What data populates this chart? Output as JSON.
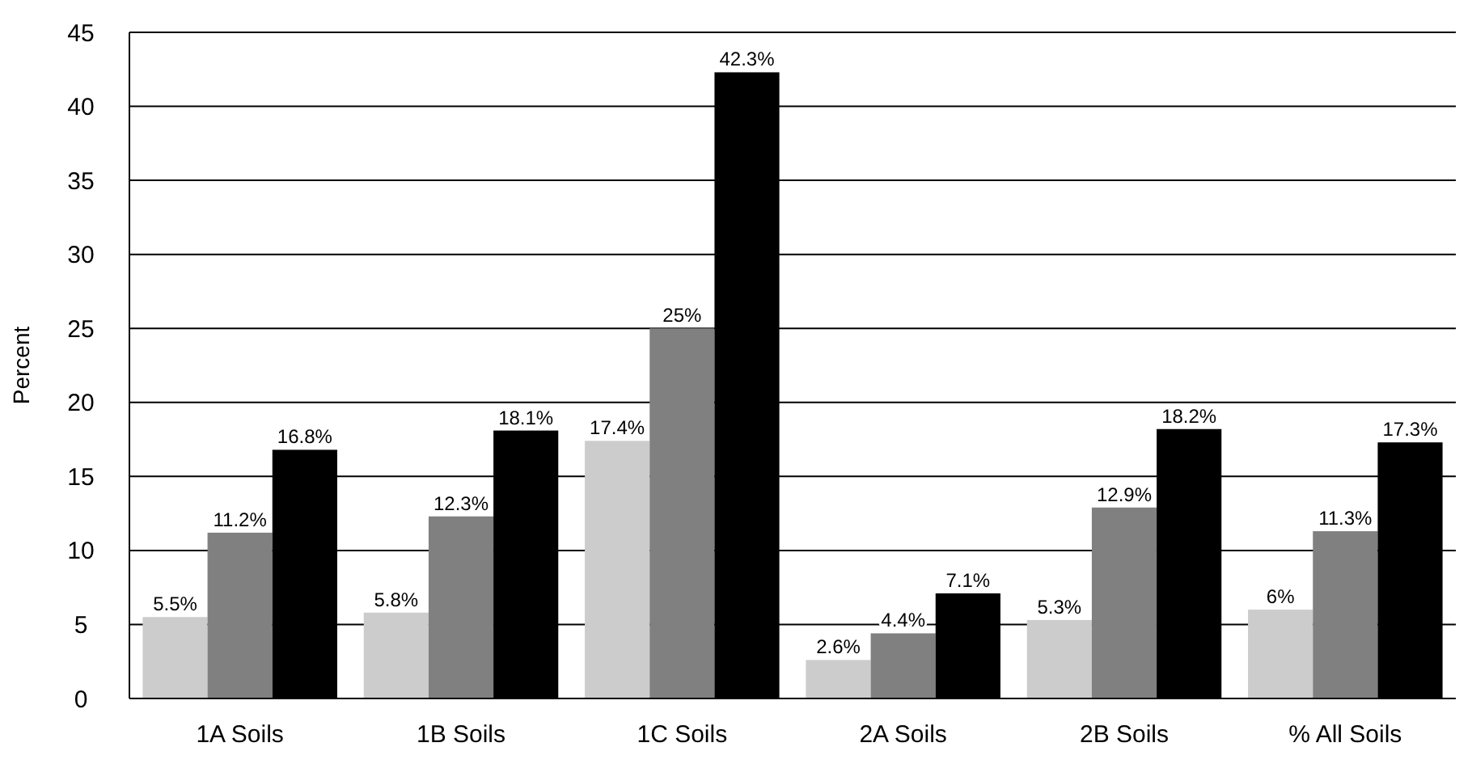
{
  "chart_data": {
    "type": "bar",
    "ylabel": "Percent",
    "categories": [
      "1A Soils",
      "1B Soils",
      "1C Soils",
      "2A Soils",
      "2B Soils",
      "% All Soils"
    ],
    "series": [
      {
        "color": "#cccccc",
        "values": [
          5.5,
          5.8,
          17.4,
          2.6,
          5.3,
          6
        ],
        "value_labels": [
          "5.5%",
          "5.8%",
          "17.4%",
          "2.6%",
          "5.3%",
          "6%"
        ]
      },
      {
        "color": "#808080",
        "values": [
          11.2,
          12.3,
          25,
          4.4,
          12.9,
          11.3
        ],
        "value_labels": [
          "11.2%",
          "12.3%",
          "25%",
          "4.4%",
          "12.9%",
          "11.3%"
        ]
      },
      {
        "color": "#000000",
        "values": [
          16.8,
          18.1,
          42.3,
          7.1,
          18.2,
          17.3
        ],
        "value_labels": [
          "16.8%",
          "18.1%",
          "42.3%",
          "7.1%",
          "18.2%",
          "17.3%"
        ]
      }
    ],
    "ylim": [
      0,
      45
    ],
    "yticks": [
      0,
      5,
      10,
      15,
      20,
      25,
      30,
      35,
      40,
      45
    ],
    "grid": "y"
  }
}
